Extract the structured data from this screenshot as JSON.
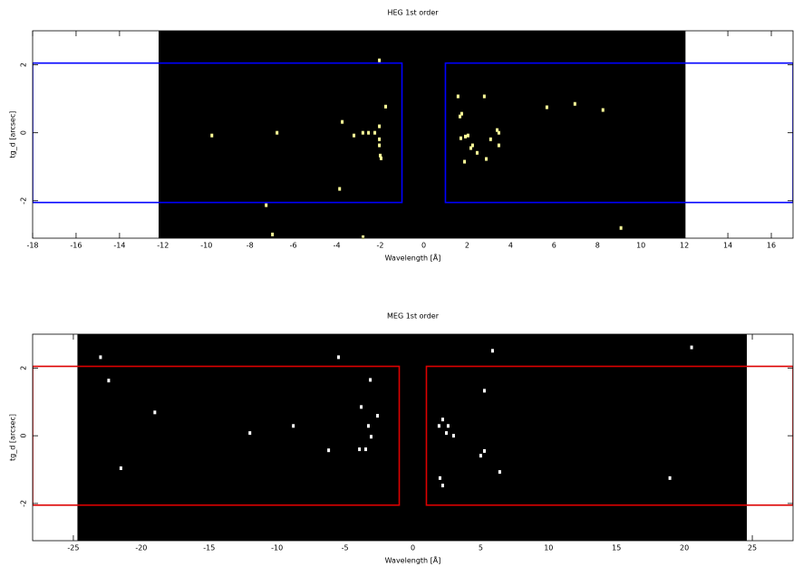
{
  "chart_data": [
    {
      "type": "scatter",
      "title": "HEG 1st order",
      "x_label": "Wavelength [Å]",
      "y_label": "tg_d [arcsec]",
      "xlim": [
        -18,
        17
      ],
      "ylim": [
        -3.1,
        3
      ],
      "xticks": [
        -18,
        -16,
        -14,
        -12,
        -10,
        -8,
        -6,
        -4,
        -2,
        0,
        2,
        4,
        6,
        8,
        10,
        12,
        14,
        16
      ],
      "yticks": [
        -2,
        0,
        2
      ],
      "image_xlim": [
        -12.2,
        12.05
      ],
      "image_color": "#000000",
      "color": "#ffff99",
      "x": [
        -2.04,
        -1.75,
        -3.75,
        -3.21,
        -2.8,
        -2.54,
        -2.25,
        -2.04,
        -2.04,
        -2.04,
        -2.0,
        -1.96,
        -3.87,
        -6.75,
        -9.75,
        -7.25,
        -6.96,
        -2.79,
        1.58,
        1.75,
        1.67,
        2.79,
        5.67,
        6.96,
        8.25,
        1.92,
        2.04,
        1.71,
        2.25,
        2.17,
        2.46,
        1.88,
        2.88,
        3.08,
        3.38,
        3.46,
        3.46,
        9.08
      ],
      "y": [
        2.13,
        0.77,
        0.32,
        -0.08,
        0,
        0,
        0,
        0.19,
        -0.19,
        -0.37,
        -0.67,
        -0.75,
        -1.65,
        0,
        -0.08,
        -2.13,
        -2.99,
        -3.07,
        1.07,
        0.56,
        0.48,
        1.07,
        0.75,
        0.85,
        0.67,
        -0.11,
        -0.08,
        -0.16,
        -0.37,
        -0.45,
        -0.59,
        -0.85,
        -0.77,
        -0.19,
        0.08,
        0,
        -0.37,
        -2.8
      ],
      "regions": [
        {
          "color": "#0000ff",
          "x": [
            -18,
            -1
          ],
          "y": [
            -2.05,
            2.05
          ]
        },
        {
          "color": "#0000ff",
          "x": [
            1,
            17
          ],
          "y": [
            -2.05,
            2.05
          ]
        }
      ]
    },
    {
      "type": "scatter",
      "title": "MEG 1st order",
      "x_label": "Wavelength [Å]",
      "y_label": "tg_d [arcsec]",
      "xlim": [
        -28,
        28
      ],
      "ylim": [
        -3.1,
        3
      ],
      "xticks": [
        -25,
        -20,
        -15,
        -10,
        -5,
        0,
        5,
        10,
        15,
        20,
        25
      ],
      "yticks": [
        -2,
        0,
        2
      ],
      "image_xlim": [
        -24.7,
        24.6
      ],
      "image_color": "#000000",
      "color": "#ffffff",
      "x": [
        -23.0,
        -22.4,
        -19.0,
        -21.5,
        -12.0,
        -8.8,
        -6.2,
        -5.47,
        -3.13,
        -3.8,
        -2.6,
        -3.27,
        -3.07,
        -3.93,
        -3.47,
        5.87,
        5.27,
        2.2,
        1.93,
        2.6,
        2.47,
        3.0,
        5.27,
        5.0,
        6.4,
        2.0,
        2.2,
        18.93,
        20.53
      ],
      "y": [
        2.32,
        1.63,
        0.69,
        -0.96,
        0.08,
        0.29,
        -0.43,
        2.32,
        1.65,
        0.85,
        0.59,
        0.29,
        -0.03,
        -0.4,
        -0.4,
        2.51,
        1.33,
        0.48,
        0.29,
        0.29,
        0.08,
        0,
        -0.45,
        -0.59,
        -1.07,
        -1.25,
        -1.47,
        -1.25,
        2.61
      ],
      "regions": [
        {
          "color": "#dd0000",
          "x": [
            -28,
            -1
          ],
          "y": [
            -2.05,
            2.05
          ]
        },
        {
          "color": "#dd0000",
          "x": [
            1,
            28
          ],
          "y": [
            -2.05,
            2.05
          ]
        }
      ]
    }
  ]
}
